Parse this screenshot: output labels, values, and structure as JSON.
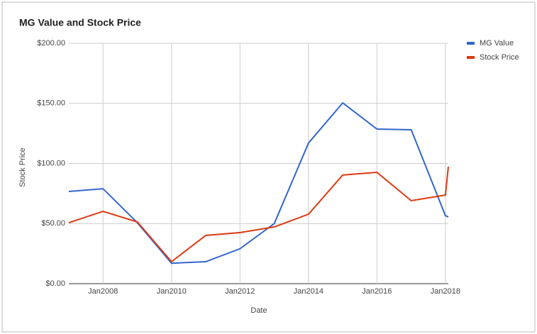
{
  "chart_data": {
    "type": "line",
    "title": "MG Value and Stock Price",
    "x_label": "Date",
    "y_label": "Stock Price",
    "x": [
      "Jan2007",
      "Jan2008",
      "Jan2009",
      "Jan2010",
      "Jan2011",
      "Jan2012",
      "Jan2013",
      "Jan2014",
      "Jan2015",
      "Jan2016",
      "Jan2017",
      "Jan2018",
      "Feb2018"
    ],
    "xlim": [
      "Jan2007",
      "Feb2018"
    ],
    "xticks": [
      "Jan2008",
      "Jan2010",
      "Jan2012",
      "Jan2014",
      "Jan2016",
      "Jan2018"
    ],
    "ylim": [
      0,
      200
    ],
    "yticks": [
      {
        "value": 0,
        "label": "$0.00"
      },
      {
        "value": 50,
        "label": "$50.00"
      },
      {
        "value": 100,
        "label": "$100.00"
      },
      {
        "value": 150,
        "label": "$150.00"
      },
      {
        "value": 200,
        "label": "$200.00"
      }
    ],
    "grid": true,
    "legend": "right",
    "series": [
      {
        "name": "MG Value",
        "color": "#3366cc",
        "values": [
          76.7,
          79,
          50.7,
          17,
          18.3,
          29,
          50,
          117,
          150.4,
          128.6,
          128,
          56.6,
          55.5
        ]
      },
      {
        "name": "Stock Price",
        "color": "#dc3912",
        "values": [
          50.7,
          60.2,
          51.3,
          18.3,
          40.1,
          42.5,
          47.2,
          57.8,
          90.3,
          92.6,
          69,
          73.7,
          97.3
        ]
      }
    ]
  }
}
